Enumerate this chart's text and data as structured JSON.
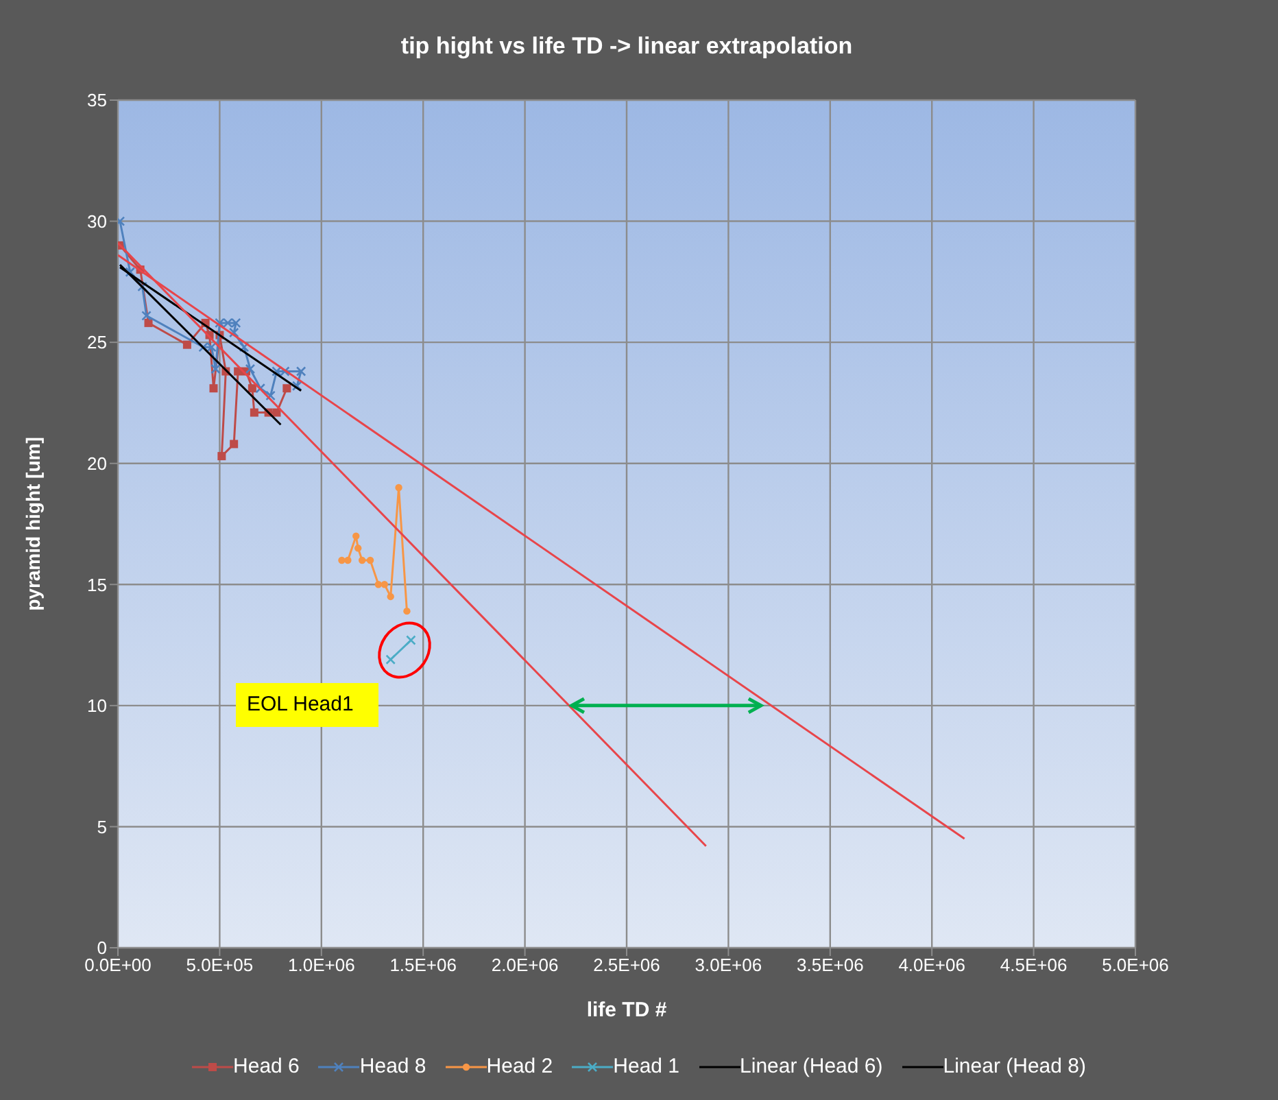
{
  "chart_data": {
    "type": "line",
    "title": "tip hight vs life TD -> linear  extrapolation",
    "xlabel": "life TD #",
    "ylabel": "pyramid hight  [um]",
    "xlim": [
      0,
      5000000
    ],
    "xticks": [
      {
        "value": 0,
        "label": "0.0E+00"
      },
      {
        "value": 500000,
        "label": "5.0E+05"
      },
      {
        "value": 1000000,
        "label": "1.0E+06"
      },
      {
        "value": 1500000,
        "label": "1.5E+06"
      },
      {
        "value": 2000000,
        "label": "2.0E+06"
      },
      {
        "value": 2500000,
        "label": "2.5E+06"
      },
      {
        "value": 3000000,
        "label": "3.0E+06"
      },
      {
        "value": 3500000,
        "label": "3.5E+06"
      },
      {
        "value": 4000000,
        "label": "4.0E+06"
      },
      {
        "value": 4500000,
        "label": "4.5E+06"
      },
      {
        "value": 5000000,
        "label": "5.0E+06"
      }
    ],
    "ylim": [
      0,
      35
    ],
    "yticks": [
      0,
      5,
      10,
      15,
      20,
      25,
      30,
      35
    ],
    "grid": true,
    "legend": "bottom",
    "line_style": "solid",
    "annotations": [
      "EOL  Head1"
    ],
    "series": [
      {
        "name": "Head 6",
        "marker": "square",
        "color": "#be4b48",
        "x": [
          10000,
          110000,
          150000,
          340000,
          430000,
          450000,
          470000,
          500000,
          530000,
          510000,
          570000,
          590000,
          630000,
          660000,
          670000,
          740000,
          780000,
          830000
        ],
        "values": [
          29.0,
          28.0,
          25.8,
          24.9,
          25.8,
          25.3,
          23.1,
          25.3,
          23.8,
          20.3,
          20.8,
          23.8,
          23.8,
          23.1,
          22.1,
          22.1,
          22.1,
          23.1
        ]
      },
      {
        "name": "Head 8",
        "marker": "cross",
        "color": "#4f81bd",
        "x": [
          10000,
          60000,
          120000,
          140000,
          420000,
          460000,
          480000,
          500000,
          540000,
          580000,
          570000,
          620000,
          650000,
          700000,
          750000,
          780000,
          820000,
          900000,
          880000
        ],
        "values": [
          30.0,
          27.9,
          27.3,
          26.1,
          24.8,
          24.8,
          23.9,
          25.8,
          25.8,
          25.8,
          25.4,
          24.8,
          23.9,
          23.1,
          22.8,
          23.8,
          23.8,
          23.8,
          23.2
        ]
      },
      {
        "name": "Head 2",
        "marker": "circle",
        "color": "#f79646",
        "x": [
          1100000,
          1130000,
          1170000,
          1180000,
          1200000,
          1240000,
          1280000,
          1310000,
          1340000,
          1380000,
          1420000
        ],
        "values": [
          16.0,
          16.0,
          17.0,
          16.5,
          16.0,
          16.0,
          15.0,
          15.0,
          14.5,
          19.0,
          13.9
        ]
      },
      {
        "name": "Head 1",
        "marker": "cross",
        "color": "#4bacc6",
        "x": [
          1340000,
          1440000
        ],
        "values": [
          11.9,
          12.7
        ]
      },
      {
        "name": "Linear (Head 6)",
        "marker": "none",
        "color": "#000000",
        "x": [
          10000,
          800000
        ],
        "values": [
          28.2,
          21.6
        ]
      },
      {
        "name": "Linear (Head 8)",
        "marker": "none",
        "color": "#000000",
        "x": [
          10000,
          900000
        ],
        "values": [
          28.1,
          23.0
        ]
      },
      {
        "marker": "none",
        "color": "#e8454a",
        "x": [
          0,
          2890000
        ],
        "values": [
          29.1,
          4.2
        ]
      },
      {
        "marker": "none",
        "color": "#e8454a",
        "x": [
          0,
          4160000
        ],
        "values": [
          28.6,
          4.5
        ]
      }
    ]
  }
}
